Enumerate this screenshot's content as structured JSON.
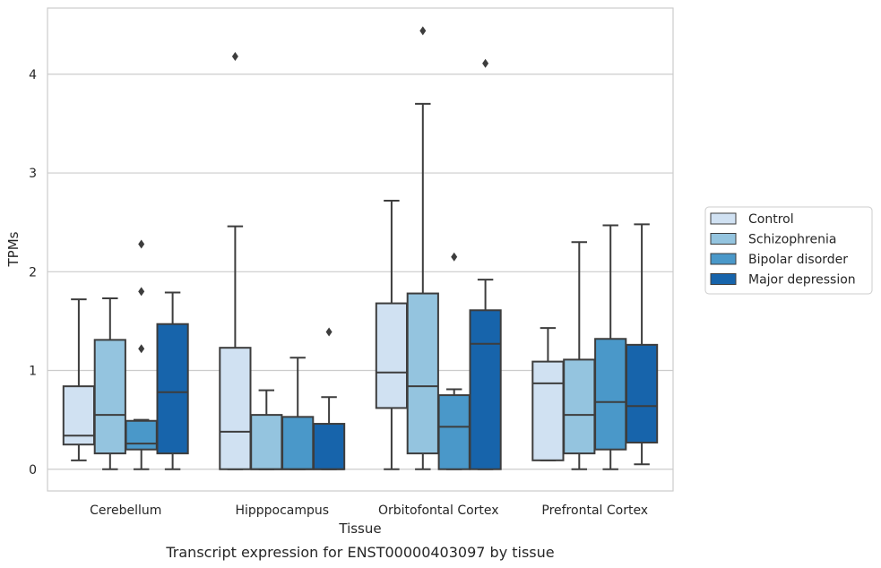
{
  "chart_data": {
    "type": "boxplot",
    "caption": "Transcript expression for ENST00000403097 by tissue",
    "xlabel": "Tissue",
    "ylabel": "TPMs",
    "ylim": [
      -0.22,
      4.67
    ],
    "yticks": [
      "0",
      "1",
      "2",
      "3",
      "4"
    ],
    "grid": "horizontal",
    "legend_position": "right",
    "categories": [
      "Cerebellum",
      "Hipppocampus",
      "Orbitofontal Cortex",
      "Prefrontal Cortex"
    ],
    "series": [
      {
        "name": "Control",
        "color": "#d0e1f2",
        "boxes": [
          {
            "whislo": 0.09,
            "q1": 0.25,
            "med": 0.34,
            "q3": 0.84,
            "whishi": 1.72,
            "fliers": []
          },
          {
            "whislo": 0.0,
            "q1": 0.0,
            "med": 0.38,
            "q3": 1.23,
            "whishi": 2.46,
            "fliers": [
              4.18
            ]
          },
          {
            "whislo": 0.0,
            "q1": 0.62,
            "med": 0.98,
            "q3": 1.68,
            "whishi": 2.72,
            "fliers": []
          },
          {
            "whislo": 0.09,
            "q1": 0.09,
            "med": 0.87,
            "q3": 1.09,
            "whishi": 1.43,
            "fliers": []
          }
        ]
      },
      {
        "name": "Schizophrenia",
        "color": "#94c4df",
        "boxes": [
          {
            "whislo": 0.0,
            "q1": 0.16,
            "med": 0.55,
            "q3": 1.31,
            "whishi": 1.73,
            "fliers": []
          },
          {
            "whislo": 0.0,
            "q1": 0.0,
            "med": 0.0,
            "q3": 0.55,
            "whishi": 0.8,
            "fliers": []
          },
          {
            "whislo": 0.0,
            "q1": 0.16,
            "med": 0.84,
            "q3": 1.78,
            "whishi": 3.7,
            "fliers": [
              4.44
            ]
          },
          {
            "whislo": 0.0,
            "q1": 0.16,
            "med": 0.55,
            "q3": 1.11,
            "whishi": 2.3,
            "fliers": []
          }
        ]
      },
      {
        "name": "Bipolar disorder",
        "color": "#4a98c9",
        "boxes": [
          {
            "whislo": 0.0,
            "q1": 0.2,
            "med": 0.26,
            "q3": 0.49,
            "whishi": 0.5,
            "fliers": [
              1.22,
              1.8,
              2.28
            ]
          },
          {
            "whislo": 0.0,
            "q1": 0.0,
            "med": 0.0,
            "q3": 0.53,
            "whishi": 1.13,
            "fliers": []
          },
          {
            "whislo": 0.0,
            "q1": 0.0,
            "med": 0.43,
            "q3": 0.75,
            "whishi": 0.81,
            "fliers": [
              2.15
            ]
          },
          {
            "whislo": 0.0,
            "q1": 0.2,
            "med": 0.68,
            "q3": 1.32,
            "whishi": 2.47,
            "fliers": []
          }
        ]
      },
      {
        "name": "Major depression",
        "color": "#1764ab",
        "boxes": [
          {
            "whislo": 0.0,
            "q1": 0.16,
            "med": 0.78,
            "q3": 1.47,
            "whishi": 1.79,
            "fliers": []
          },
          {
            "whislo": 0.0,
            "q1": 0.0,
            "med": 0.0,
            "q3": 0.46,
            "whishi": 0.73,
            "fliers": [
              1.39
            ]
          },
          {
            "whislo": 0.0,
            "q1": 0.0,
            "med": 1.27,
            "q3": 1.61,
            "whishi": 1.92,
            "fliers": [
              4.11
            ]
          },
          {
            "whislo": 0.05,
            "q1": 0.27,
            "med": 0.64,
            "q3": 1.26,
            "whishi": 2.48,
            "fliers": []
          }
        ]
      }
    ]
  }
}
